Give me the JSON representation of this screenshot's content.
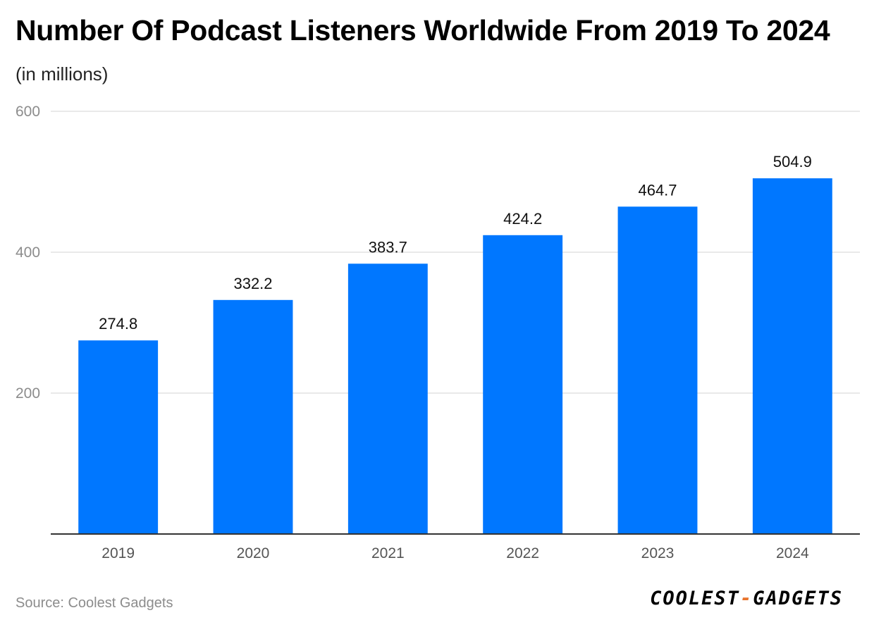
{
  "title": "Number Of Podcast Listeners Worldwide From 2019 To 2024",
  "subtitle": "(in millions)",
  "source": "Source: Coolest Gadgets",
  "logo": {
    "left": "COOLEST",
    "sep": "-",
    "right": "GADGETS"
  },
  "colors": {
    "bar": "#0077ff",
    "grid": "#e2e2e2",
    "axis": "#333333",
    "logo_accent": "#e8732c"
  },
  "chart_data": {
    "type": "bar",
    "categories": [
      "2019",
      "2020",
      "2021",
      "2022",
      "2023",
      "2024"
    ],
    "values": [
      274.8,
      332.2,
      383.7,
      424.2,
      464.7,
      504.9
    ],
    "value_labels": [
      "274.8",
      "332.2",
      "383.7",
      "424.2",
      "464.7",
      "504.9"
    ],
    "ylim": [
      0,
      600
    ],
    "yticks": [
      200,
      400,
      600
    ],
    "ytick_labels": [
      "200",
      "400",
      "600"
    ],
    "grid": true,
    "xlabel": "",
    "ylabel": ""
  }
}
